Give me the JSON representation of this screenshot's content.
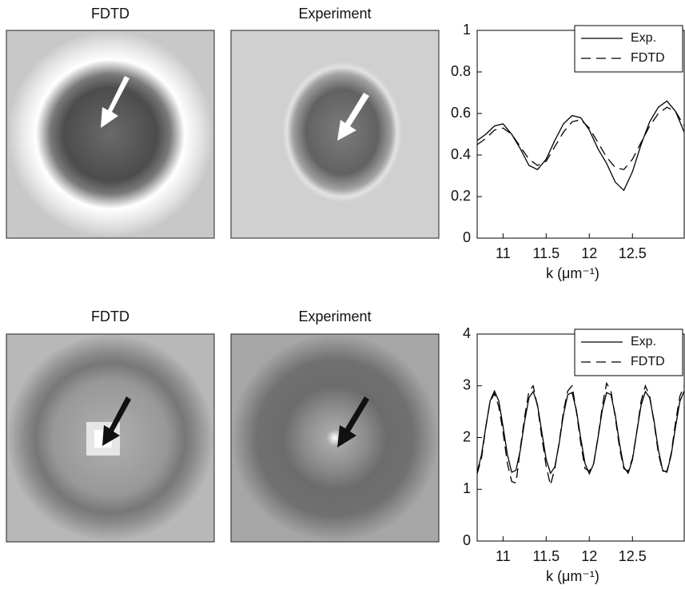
{
  "image_panels": [
    {
      "title": "FDTD"
    },
    {
      "title": "Experiment"
    },
    {
      "title": "FDTD"
    },
    {
      "title": "Experiment"
    }
  ],
  "chart_data": [
    {
      "type": "line",
      "xlabel": "k (μm⁻¹)",
      "xlim": [
        10.7,
        13.1
      ],
      "ylim": [
        0,
        1
      ],
      "xticks": [
        11,
        11.5,
        12,
        12.5
      ],
      "yticks": [
        0,
        0.2,
        0.4,
        0.6,
        0.8,
        1
      ],
      "legend": "upper right",
      "x": [
        10.7,
        10.8,
        10.9,
        11.0,
        11.1,
        11.2,
        11.3,
        11.4,
        11.5,
        11.6,
        11.7,
        11.8,
        11.9,
        12.0,
        12.1,
        12.2,
        12.3,
        12.4,
        12.5,
        12.6,
        12.7,
        12.8,
        12.9,
        13.0,
        13.1
      ],
      "series": [
        {
          "name": "Exp.",
          "color": "#000000",
          "dash": "solid",
          "values": [
            0.47,
            0.5,
            0.54,
            0.55,
            0.5,
            0.43,
            0.35,
            0.33,
            0.38,
            0.47,
            0.55,
            0.59,
            0.58,
            0.52,
            0.43,
            0.36,
            0.27,
            0.23,
            0.32,
            0.45,
            0.56,
            0.63,
            0.66,
            0.61,
            0.51
          ]
        },
        {
          "name": "FDTD",
          "color": "#000000",
          "dash": "dashed",
          "values": [
            0.45,
            0.48,
            0.52,
            0.53,
            0.5,
            0.44,
            0.38,
            0.35,
            0.37,
            0.44,
            0.51,
            0.56,
            0.57,
            0.53,
            0.46,
            0.39,
            0.34,
            0.33,
            0.38,
            0.46,
            0.54,
            0.6,
            0.63,
            0.61,
            0.54
          ]
        }
      ]
    },
    {
      "type": "line",
      "xlabel": "k (μm⁻¹)",
      "xlim": [
        10.7,
        13.1
      ],
      "ylim": [
        0,
        4
      ],
      "xticks": [
        11,
        11.5,
        12,
        12.5
      ],
      "yticks": [
        0,
        1,
        2,
        3,
        4
      ],
      "legend": "upper right",
      "x": [
        10.7,
        10.75,
        10.8,
        10.85,
        10.9,
        10.95,
        11.0,
        11.05,
        11.1,
        11.15,
        11.2,
        11.25,
        11.3,
        11.35,
        11.4,
        11.45,
        11.5,
        11.55,
        11.6,
        11.65,
        11.7,
        11.75,
        11.8,
        11.85,
        11.9,
        11.95,
        12.0,
        12.05,
        12.1,
        12.15,
        12.2,
        12.25,
        12.3,
        12.35,
        12.4,
        12.45,
        12.5,
        12.55,
        12.6,
        12.65,
        12.7,
        12.75,
        12.8,
        12.85,
        12.9,
        12.95,
        13.0,
        13.05,
        13.1
      ],
      "series": [
        {
          "name": "Exp.",
          "color": "#000000",
          "dash": "solid",
          "values": [
            1.33,
            1.67,
            2.21,
            2.71,
            2.9,
            2.71,
            2.21,
            1.67,
            1.33,
            1.37,
            1.76,
            2.32,
            2.77,
            2.89,
            2.63,
            2.1,
            1.58,
            1.31,
            1.43,
            1.88,
            2.44,
            2.83,
            2.87,
            2.53,
            1.99,
            1.5,
            1.3,
            1.49,
            1.99,
            2.53,
            2.87,
            2.83,
            2.44,
            1.88,
            1.43,
            1.31,
            1.57,
            2.1,
            2.62,
            2.89,
            2.77,
            2.33,
            1.77,
            1.37,
            1.33,
            1.67,
            2.21,
            2.7,
            2.9
          ]
        },
        {
          "name": "FDTD",
          "color": "#000000",
          "dash": "dashed",
          "values": [
            1.3,
            1.6,
            2.2,
            2.7,
            2.85,
            2.6,
            2.1,
            1.5,
            1.15,
            1.12,
            1.8,
            2.4,
            2.9,
            3.0,
            2.6,
            2.0,
            1.45,
            1.08,
            1.4,
            1.9,
            2.5,
            2.9,
            3.0,
            2.5,
            1.9,
            1.4,
            1.35,
            1.5,
            2.0,
            2.6,
            3.05,
            2.9,
            2.4,
            1.8,
            1.4,
            1.35,
            1.6,
            2.1,
            2.7,
            3.0,
            2.8,
            2.3,
            1.7,
            1.35,
            1.35,
            1.7,
            2.3,
            2.8,
            3.0
          ]
        }
      ]
    }
  ]
}
